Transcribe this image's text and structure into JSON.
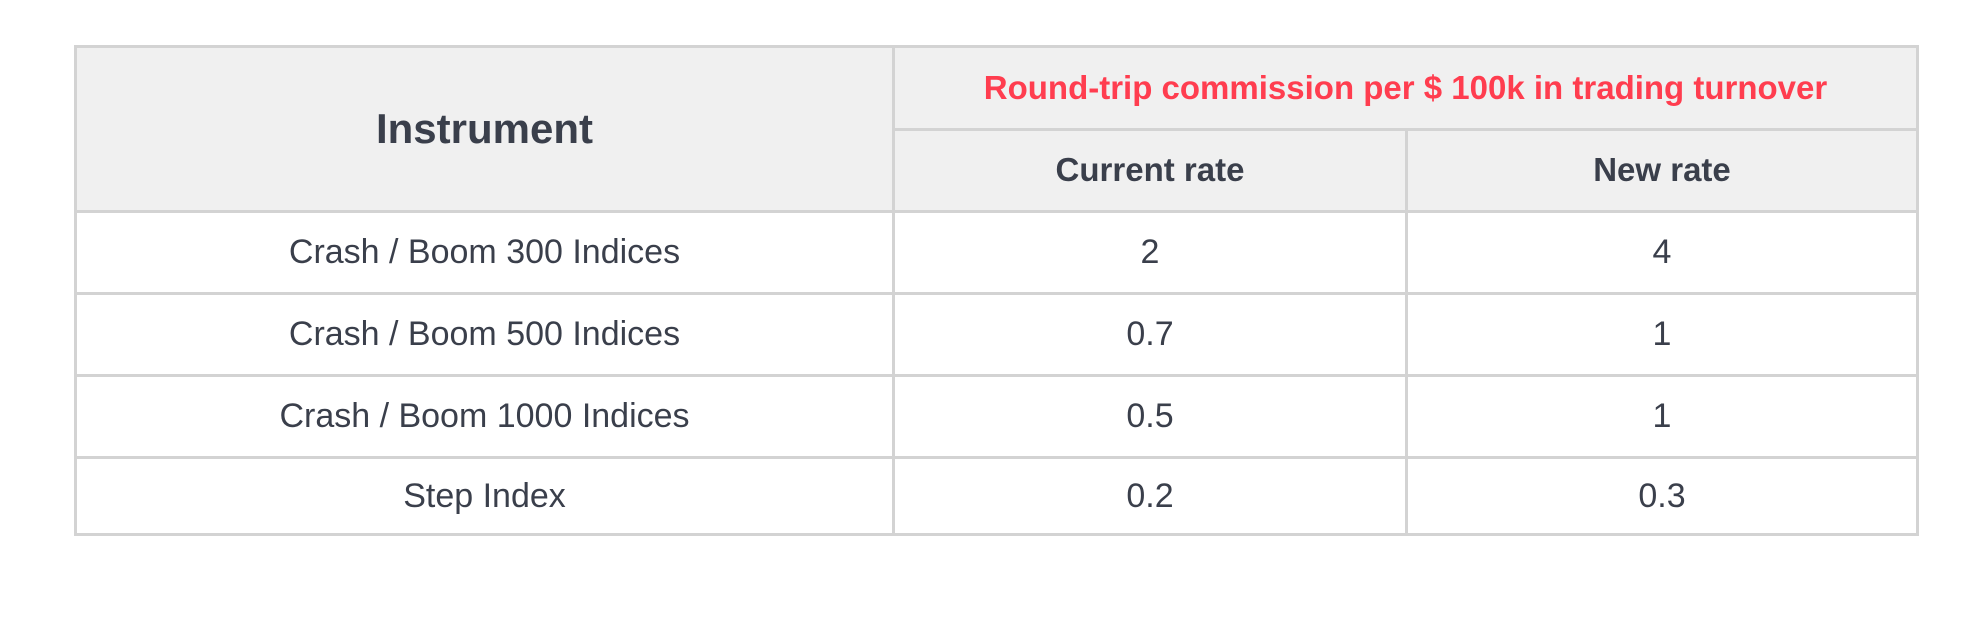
{
  "table": {
    "header": {
      "instrument": "Instrument",
      "group": "Round-trip commission per $ 100k in trading turnover",
      "current_rate": "Current rate",
      "new_rate": "New rate"
    },
    "rows": [
      {
        "instrument": "Crash / Boom 300 Indices",
        "current": "2",
        "new": "4"
      },
      {
        "instrument": "Crash / Boom 500 Indices",
        "current": "0.7",
        "new": "1"
      },
      {
        "instrument": "Crash / Boom 1000 Indices",
        "current": "0.5",
        "new": "1"
      },
      {
        "instrument": "Step Index",
        "current": "0.2",
        "new": "0.3"
      }
    ]
  },
  "colors": {
    "accent_red": "#ff3d4f",
    "header_bg": "#f0f0f0",
    "border": "#d3d3d3",
    "text": "#3a3f4b"
  }
}
